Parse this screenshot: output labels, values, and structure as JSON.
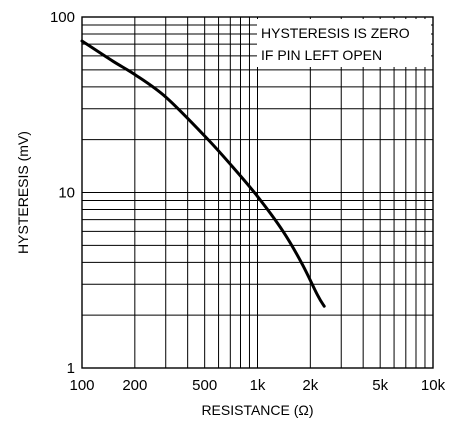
{
  "chart_data": {
    "type": "line",
    "title": "",
    "xlabel": "RESISTANCE (Ω)",
    "ylabel": "HYSTERESIS (mV)",
    "x_scale": "log",
    "y_scale": "log",
    "xlim": [
      100,
      10000
    ],
    "ylim": [
      1,
      100
    ],
    "x_ticks": [
      {
        "value": 100,
        "label": "100"
      },
      {
        "value": 200,
        "label": "200"
      },
      {
        "value": 500,
        "label": "500"
      },
      {
        "value": 1000,
        "label": "1k"
      },
      {
        "value": 2000,
        "label": "2k"
      },
      {
        "value": 5000,
        "label": "5k"
      },
      {
        "value": 10000,
        "label": "10k"
      }
    ],
    "y_ticks": [
      {
        "value": 1,
        "label": "1"
      },
      {
        "value": 10,
        "label": "10"
      },
      {
        "value": 100,
        "label": "100"
      }
    ],
    "grid": true,
    "annotation": [
      "HYSTERESIS IS ZERO",
      "IF PIN LEFT OPEN"
    ],
    "annotation_placement": "top-right",
    "series": [
      {
        "x": [
          100,
          150,
          200,
          300,
          500,
          700,
          1000,
          1400,
          1800,
          2200,
          2400
        ],
        "y": [
          73,
          56,
          47,
          35,
          21,
          14.5,
          9.5,
          6,
          3.9,
          2.6,
          2.25
        ]
      }
    ],
    "colors": {
      "line": "#000000",
      "grid": "#000000",
      "background": "#ffffff"
    }
  }
}
